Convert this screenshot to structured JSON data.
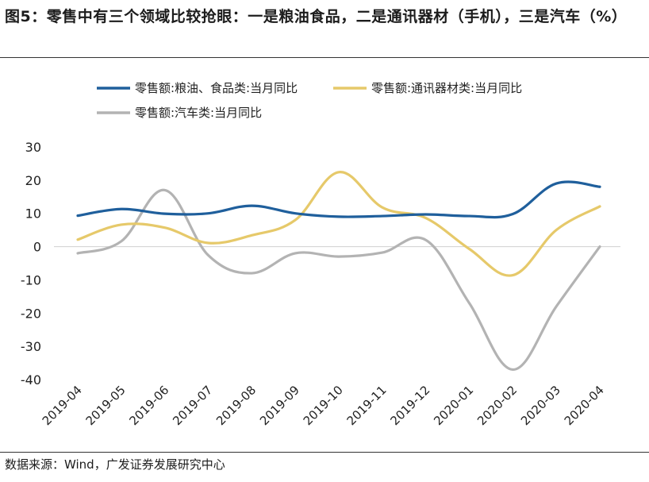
{
  "title": "图5：零售中有三个领域比较抢眼：一是粮油食品，二是通讯器材（手机），三是汽车（%）",
  "source": "数据来源：Wind，广发证券发展研究中心",
  "chart_data": {
    "type": "line",
    "categories": [
      "2019-04",
      "2019-05",
      "2019-06",
      "2019-07",
      "2019-08",
      "2019-09",
      "2019-10",
      "2019-11",
      "2019-12",
      "2020-01",
      "2020-02",
      "2020-03",
      "2020-04"
    ],
    "ylim": [
      -40,
      30
    ],
    "yticks": [
      "30",
      "20",
      "10",
      "0",
      "-10",
      "-20",
      "-30",
      "-40"
    ],
    "series": [
      {
        "name": "零售额:粮油、食品类:当月同比",
        "color": "#1f5f9c",
        "values": [
          9.3,
          11.3,
          9.9,
          10.0,
          12.3,
          10.0,
          9.0,
          9.2,
          9.7,
          9.2,
          9.8,
          19.0,
          18.0
        ]
      },
      {
        "name": "零售额:通讯器材类:当月同比",
        "color": "#e6c96a",
        "values": [
          2.1,
          6.6,
          5.7,
          1.1,
          3.4,
          8.0,
          22.4,
          11.8,
          8.6,
          -0.7,
          -8.6,
          5.0,
          12.1
        ]
      },
      {
        "name": "零售额:汽车类:当月同比",
        "color": "#b3b3b3",
        "values": [
          -2.0,
          1.6,
          17.0,
          -2.6,
          -8.0,
          -2.0,
          -3.0,
          -1.8,
          2.0,
          -17.0,
          -37.0,
          -18.0,
          0.0
        ]
      }
    ]
  }
}
